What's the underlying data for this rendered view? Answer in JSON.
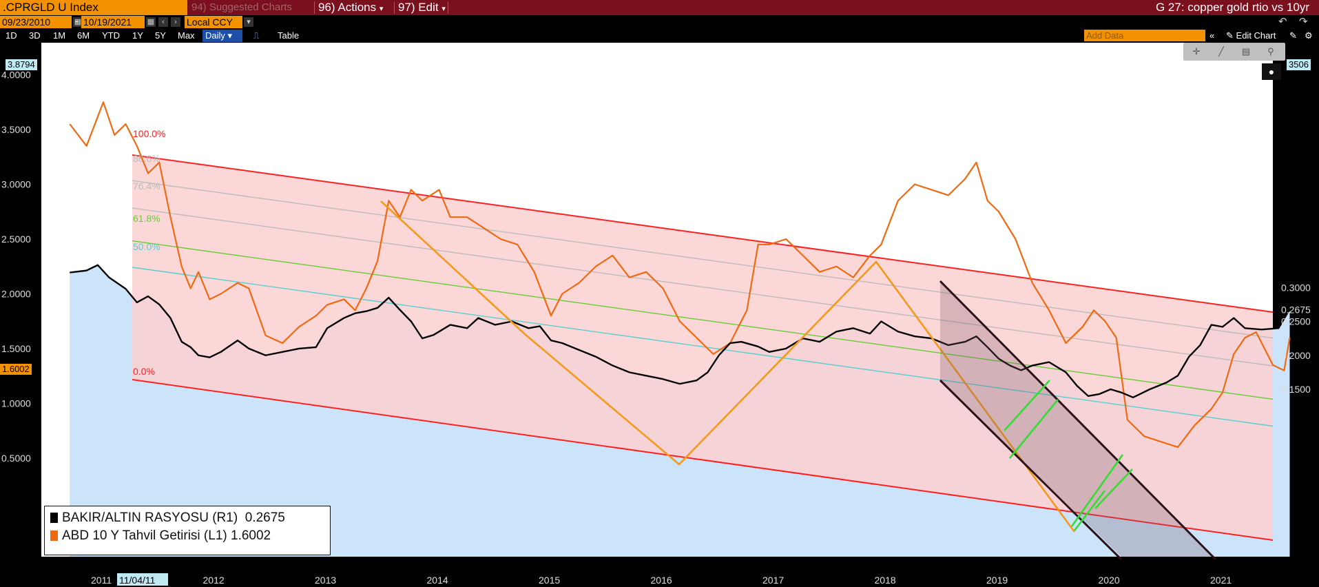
{
  "toolbar": {
    "ticker": ".CPRGLD U Index",
    "suggested": "94) Suggested Charts",
    "actions": "96) Actions",
    "edit": "97) Edit",
    "chart_title": "G 27: copper gold rtio vs 10yr",
    "date_from": "09/23/2010",
    "date_to": "10/19/2021",
    "currency": "Local CCY",
    "ranges": [
      "1D",
      "3D",
      "1M",
      "6M",
      "YTD",
      "1Y",
      "5Y",
      "Max"
    ],
    "daily": "Daily",
    "table": "Table",
    "add_data": "Add Data",
    "edit_chart": "Edit Chart"
  },
  "colors": {
    "ratio": "#000000",
    "yield": "#ee6a12",
    "channel": "#ff2020",
    "fib_upper": "#bbbbbb",
    "fib_61": "#66cc33",
    "fib_50": "#55cfd0",
    "orange_lines": "#f39a1c",
    "green_ticks": "#33dd33",
    "area": "#cce4fa",
    "channel_fill": "#fbd0d0"
  },
  "chart_data": {
    "type": "line",
    "x_ticks": [
      "2011",
      "2012",
      "2013",
      "2014",
      "2015",
      "2016",
      "2017",
      "2018",
      "2019",
      "2020",
      "2021"
    ],
    "x_cursor": "11/04/11",
    "left_axis": {
      "ticks": [
        "0.5000",
        "1.0000",
        "1.5000",
        "2.0000",
        "2.5000",
        "3.0000",
        "3.5000",
        "4.0000"
      ],
      "ylim": [
        0.5,
        4.0
      ]
    },
    "right_axis": {
      "ticks": [
        "0.1500",
        "0.2000",
        "0.2500",
        "0.2675",
        "0.3000"
      ],
      "ylim": [
        0.135,
        0.35
      ]
    },
    "tags": {
      "left_top": "3.8794",
      "left_current": "1.6002",
      "right_top": "3506"
    },
    "fib_labels": [
      "100.0%",
      "88.6%",
      "76.4%",
      "61.8%",
      "50.0%",
      "0.0%"
    ],
    "series": [
      {
        "name": "BAKIR/ALTIN RASYOSU (R1)",
        "last": "0.2675",
        "axis": "right",
        "points": [
          [
            2010.7,
            0.322
          ],
          [
            2010.85,
            0.325
          ],
          [
            2010.95,
            0.333
          ],
          [
            2011.05,
            0.315
          ],
          [
            2011.2,
            0.298
          ],
          [
            2011.3,
            0.278
          ],
          [
            2011.4,
            0.287
          ],
          [
            2011.5,
            0.275
          ],
          [
            2011.6,
            0.255
          ],
          [
            2011.7,
            0.22
          ],
          [
            2011.78,
            0.212
          ],
          [
            2011.85,
            0.2
          ],
          [
            2011.95,
            0.197
          ],
          [
            2012.05,
            0.205
          ],
          [
            2012.2,
            0.222
          ],
          [
            2012.3,
            0.21
          ],
          [
            2012.45,
            0.2
          ],
          [
            2012.6,
            0.205
          ],
          [
            2012.75,
            0.21
          ],
          [
            2012.9,
            0.212
          ],
          [
            2013.0,
            0.24
          ],
          [
            2013.15,
            0.255
          ],
          [
            2013.25,
            0.262
          ],
          [
            2013.35,
            0.265
          ],
          [
            2013.45,
            0.27
          ],
          [
            2013.55,
            0.285
          ],
          [
            2013.65,
            0.267
          ],
          [
            2013.75,
            0.25
          ],
          [
            2013.85,
            0.225
          ],
          [
            2013.95,
            0.23
          ],
          [
            2014.1,
            0.245
          ],
          [
            2014.25,
            0.24
          ],
          [
            2014.35,
            0.255
          ],
          [
            2014.5,
            0.245
          ],
          [
            2014.65,
            0.25
          ],
          [
            2014.8,
            0.24
          ],
          [
            2014.9,
            0.243
          ],
          [
            2015.0,
            0.222
          ],
          [
            2015.1,
            0.218
          ],
          [
            2015.25,
            0.208
          ],
          [
            2015.4,
            0.198
          ],
          [
            2015.55,
            0.185
          ],
          [
            2015.7,
            0.175
          ],
          [
            2015.85,
            0.17
          ],
          [
            2016.0,
            0.165
          ],
          [
            2016.15,
            0.158
          ],
          [
            2016.3,
            0.163
          ],
          [
            2016.4,
            0.175
          ],
          [
            2016.5,
            0.2
          ],
          [
            2016.6,
            0.218
          ],
          [
            2016.7,
            0.22
          ],
          [
            2016.85,
            0.213
          ],
          [
            2016.95,
            0.205
          ],
          [
            2017.1,
            0.21
          ],
          [
            2017.25,
            0.225
          ],
          [
            2017.4,
            0.22
          ],
          [
            2017.55,
            0.235
          ],
          [
            2017.7,
            0.24
          ],
          [
            2017.85,
            0.232
          ],
          [
            2017.95,
            0.25
          ],
          [
            2018.1,
            0.235
          ],
          [
            2018.25,
            0.228
          ],
          [
            2018.4,
            0.225
          ],
          [
            2018.55,
            0.215
          ],
          [
            2018.7,
            0.22
          ],
          [
            2018.8,
            0.228
          ],
          [
            2018.9,
            0.212
          ],
          [
            2019.0,
            0.195
          ],
          [
            2019.1,
            0.185
          ],
          [
            2019.2,
            0.178
          ],
          [
            2019.3,
            0.185
          ],
          [
            2019.45,
            0.19
          ],
          [
            2019.6,
            0.175
          ],
          [
            2019.7,
            0.155
          ],
          [
            2019.8,
            0.14
          ],
          [
            2019.9,
            0.143
          ],
          [
            2020.0,
            0.15
          ],
          [
            2020.1,
            0.145
          ],
          [
            2020.2,
            0.138
          ],
          [
            2020.35,
            0.15
          ],
          [
            2020.5,
            0.16
          ],
          [
            2020.6,
            0.17
          ],
          [
            2020.7,
            0.198
          ],
          [
            2020.8,
            0.215
          ],
          [
            2020.9,
            0.245
          ],
          [
            2021.0,
            0.242
          ],
          [
            2021.1,
            0.255
          ],
          [
            2021.2,
            0.24
          ],
          [
            2021.35,
            0.238
          ],
          [
            2021.5,
            0.24
          ],
          [
            2021.6,
            0.268
          ]
        ]
      },
      {
        "name": "ABD 10 Y Tahvil Getirisi (L1)",
        "last": "1.6002",
        "axis": "left",
        "points": [
          [
            2010.7,
            3.55
          ],
          [
            2010.85,
            3.35
          ],
          [
            2011.0,
            3.75
          ],
          [
            2011.1,
            3.45
          ],
          [
            2011.2,
            3.55
          ],
          [
            2011.3,
            3.35
          ],
          [
            2011.4,
            3.1
          ],
          [
            2011.5,
            3.2
          ],
          [
            2011.6,
            2.7
          ],
          [
            2011.7,
            2.25
          ],
          [
            2011.78,
            2.05
          ],
          [
            2011.85,
            2.2
          ],
          [
            2011.95,
            1.95
          ],
          [
            2012.05,
            2.0
          ],
          [
            2012.2,
            2.1
          ],
          [
            2012.3,
            2.05
          ],
          [
            2012.45,
            1.62
          ],
          [
            2012.6,
            1.55
          ],
          [
            2012.75,
            1.7
          ],
          [
            2012.9,
            1.8
          ],
          [
            2013.0,
            1.9
          ],
          [
            2013.15,
            1.95
          ],
          [
            2013.25,
            1.85
          ],
          [
            2013.35,
            2.05
          ],
          [
            2013.45,
            2.3
          ],
          [
            2013.55,
            2.85
          ],
          [
            2013.65,
            2.7
          ],
          [
            2013.75,
            2.95
          ],
          [
            2013.85,
            2.85
          ],
          [
            2014.0,
            2.95
          ],
          [
            2014.1,
            2.7
          ],
          [
            2014.25,
            2.7
          ],
          [
            2014.4,
            2.6
          ],
          [
            2014.55,
            2.5
          ],
          [
            2014.7,
            2.45
          ],
          [
            2014.85,
            2.2
          ],
          [
            2015.0,
            1.8
          ],
          [
            2015.1,
            2.0
          ],
          [
            2015.25,
            2.1
          ],
          [
            2015.4,
            2.25
          ],
          [
            2015.55,
            2.35
          ],
          [
            2015.7,
            2.15
          ],
          [
            2015.85,
            2.2
          ],
          [
            2016.0,
            2.05
          ],
          [
            2016.15,
            1.75
          ],
          [
            2016.3,
            1.6
          ],
          [
            2016.45,
            1.45
          ],
          [
            2016.6,
            1.55
          ],
          [
            2016.75,
            1.85
          ],
          [
            2016.85,
            2.45
          ],
          [
            2016.95,
            2.45
          ],
          [
            2017.1,
            2.5
          ],
          [
            2017.25,
            2.35
          ],
          [
            2017.4,
            2.2
          ],
          [
            2017.55,
            2.25
          ],
          [
            2017.7,
            2.15
          ],
          [
            2017.85,
            2.35
          ],
          [
            2017.95,
            2.45
          ],
          [
            2018.1,
            2.85
          ],
          [
            2018.25,
            3.0
          ],
          [
            2018.4,
            2.95
          ],
          [
            2018.55,
            2.9
          ],
          [
            2018.7,
            3.05
          ],
          [
            2018.8,
            3.2
          ],
          [
            2018.9,
            2.85
          ],
          [
            2019.0,
            2.75
          ],
          [
            2019.15,
            2.5
          ],
          [
            2019.3,
            2.1
          ],
          [
            2019.45,
            1.85
          ],
          [
            2019.6,
            1.55
          ],
          [
            2019.75,
            1.7
          ],
          [
            2019.85,
            1.85
          ],
          [
            2019.95,
            1.75
          ],
          [
            2020.05,
            1.6
          ],
          [
            2020.15,
            0.85
          ],
          [
            2020.3,
            0.7
          ],
          [
            2020.45,
            0.65
          ],
          [
            2020.6,
            0.6
          ],
          [
            2020.75,
            0.8
          ],
          [
            2020.9,
            0.95
          ],
          [
            2021.0,
            1.1
          ],
          [
            2021.1,
            1.45
          ],
          [
            2021.2,
            1.6
          ],
          [
            2021.3,
            1.65
          ],
          [
            2021.45,
            1.35
          ],
          [
            2021.55,
            1.3
          ],
          [
            2021.6,
            1.6
          ]
        ]
      }
    ],
    "legend_position": "bottom-left"
  }
}
